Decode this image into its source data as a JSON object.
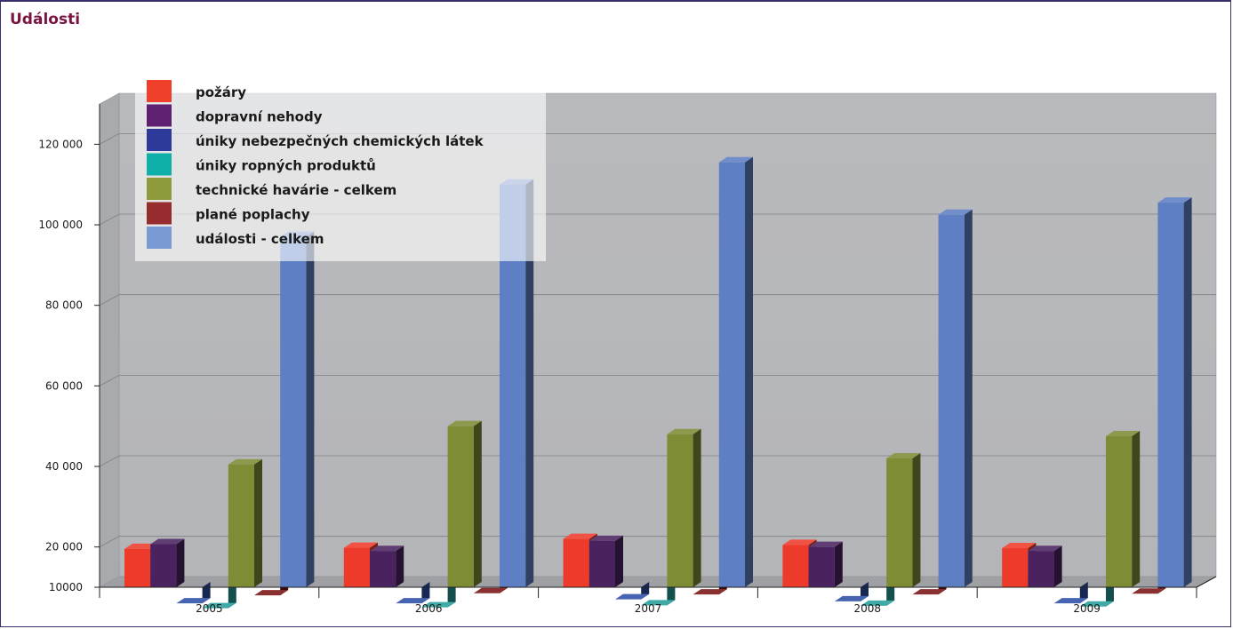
{
  "page": {
    "title": "Události"
  },
  "chart_data": {
    "type": "bar",
    "title": "Události",
    "xlabel": "",
    "ylabel": "",
    "categories": [
      "2005",
      "2006",
      "2007",
      "2008",
      "2009"
    ],
    "y_ticks": [
      {
        "value": 10000,
        "label": "10000"
      },
      {
        "value": 20000,
        "label": "20 000"
      },
      {
        "value": 40000,
        "label": "40 000"
      },
      {
        "value": 60000,
        "label": "60 000"
      },
      {
        "value": 80000,
        "label": "80 000"
      },
      {
        "value": 100000,
        "label": "100 000"
      },
      {
        "value": 120000,
        "label": "120 000"
      }
    ],
    "ylim": [
      0,
      130000
    ],
    "grid": true,
    "legend_position": "top-left",
    "series": [
      {
        "name": "požáry",
        "color": "#ee3a2a",
        "values": [
          19500,
          19800,
          22000,
          20500,
          19700
        ]
      },
      {
        "name": "dopravní nehody",
        "color": "#4a2260",
        "values": [
          20700,
          19000,
          21500,
          20000,
          19000
        ]
      },
      {
        "name": "úniky nebezpečných chemických látek",
        "color": "#2e4fa8",
        "values": [
          6000,
          6000,
          7000,
          6500,
          6000
        ]
      },
      {
        "name": "úniky ropných produktů",
        "color": "#26a09a",
        "values": [
          4800,
          5000,
          5500,
          5400,
          5200
        ]
      },
      {
        "name": "technické havárie - celkem",
        "color": "#7e8c36",
        "values": [
          40500,
          50000,
          48000,
          42000,
          47500
        ]
      },
      {
        "name": "plané poplachy",
        "color": "#7a1414",
        "values": [
          8000,
          8500,
          8200,
          8200,
          8400
        ]
      },
      {
        "name": "události - celkem",
        "color": "#5e7fc4",
        "values": [
          97000,
          110000,
          115500,
          102500,
          105500
        ]
      }
    ],
    "legend_colors": [
      "#f03f2a",
      "#5f2072",
      "#2d3a9a",
      "#0fb0aa",
      "#8e9a3c",
      "#962c2e",
      "#7a9ad6"
    ]
  }
}
